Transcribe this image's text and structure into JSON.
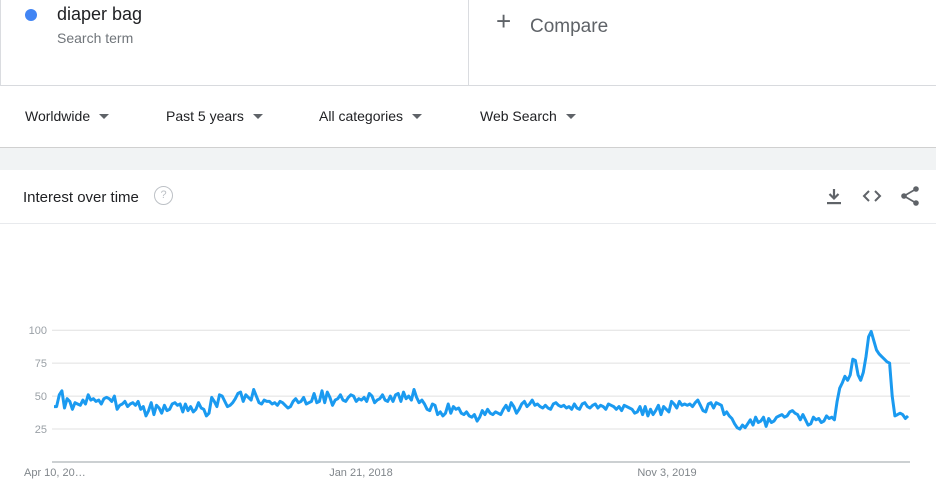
{
  "search_term": {
    "name": "diaper bag",
    "subtitle": "Search term",
    "color": "#4285f4"
  },
  "compare": {
    "label": "Compare"
  },
  "filters": [
    {
      "label": "Worldwide"
    },
    {
      "label": "Past 5 years"
    },
    {
      "label": "All categories"
    },
    {
      "label": "Web Search"
    }
  ],
  "panel": {
    "title": "Interest over time",
    "help_icon": "question-circle-icon",
    "tools": [
      "download-icon",
      "embed-code-icon",
      "share-icon"
    ]
  },
  "chart_data": {
    "type": "line",
    "x_tick_labels": [
      "Apr 10, 20…",
      "Jan 21, 2018",
      "Nov 3, 2019"
    ],
    "y_ticks": [
      25,
      50,
      75,
      100
    ],
    "ylim": [
      0,
      100
    ],
    "grid": true,
    "series": [
      {
        "color": "#1a9af0",
        "values": [
          42,
          42,
          51,
          54,
          41,
          48,
          46,
          40,
          45,
          44,
          43,
          47,
          44,
          51,
          47,
          48,
          46,
          47,
          44,
          48,
          49,
          48,
          46,
          50,
          40,
          43,
          44,
          46,
          42,
          44,
          45,
          43,
          46,
          40,
          42,
          35,
          39,
          45,
          36,
          43,
          41,
          37,
          43,
          39,
          40,
          44,
          45,
          43,
          44,
          38,
          44,
          39,
          42,
          38,
          40,
          45,
          41,
          40,
          35,
          37,
          49,
          46,
          42,
          51,
          50,
          46,
          42,
          43,
          45,
          48,
          52,
          53,
          46,
          51,
          49,
          47,
          55,
          50,
          45,
          44,
          47,
          46,
          46,
          44,
          45,
          43,
          46,
          45,
          43,
          41,
          42,
          46,
          48,
          45,
          46,
          49,
          44,
          45,
          46,
          52,
          45,
          46,
          54,
          45,
          53,
          49,
          43,
          47,
          48,
          51,
          47,
          46,
          49,
          51,
          50,
          46,
          48,
          47,
          49,
          46,
          52,
          50,
          45,
          47,
          48,
          51,
          47,
          46,
          50,
          46,
          51,
          52,
          46,
          53,
          48,
          50,
          47,
          55,
          49,
          45,
          47,
          44,
          40,
          39,
          44,
          43,
          36,
          38,
          35,
          37,
          44,
          37,
          42,
          40,
          41,
          37,
          36,
          38,
          35,
          34,
          36,
          31,
          34,
          39,
          36,
          40,
          37,
          36,
          38,
          37,
          36,
          40,
          43,
          39,
          45,
          42,
          37,
          40,
          44,
          46,
          42,
          44,
          47,
          43,
          44,
          42,
          41,
          43,
          41,
          40,
          44,
          45,
          43,
          42,
          43,
          41,
          42,
          40,
          44,
          41,
          40,
          44,
          45,
          42,
          41,
          43,
          44,
          41,
          43,
          42,
          40,
          44,
          43,
          42,
          40,
          42,
          39,
          43,
          42,
          41,
          40,
          37,
          38,
          42,
          36,
          42,
          35,
          40,
          36,
          39,
          43,
          36,
          42,
          40,
          38,
          46,
          44,
          41,
          46,
          43,
          44,
          43,
          44,
          42,
          45,
          47,
          43,
          39,
          38,
          44,
          45,
          41,
          45,
          44,
          43,
          36,
          38,
          35,
          33,
          29,
          26,
          25,
          28,
          26,
          29,
          32,
          28,
          34,
          30,
          31,
          34,
          27,
          33,
          30,
          31,
          34,
          35,
          36,
          34,
          35,
          38,
          39,
          37,
          36,
          32,
          36,
          32,
          28,
          29,
          34,
          32,
          33,
          30,
          31,
          35,
          33,
          34,
          32,
          46,
          56,
          60,
          65,
          62,
          66,
          78,
          77,
          66,
          62,
          68,
          80,
          95,
          99,
          92,
          85,
          82,
          80,
          78,
          76,
          75,
          50,
          35,
          36,
          37,
          36,
          33,
          35
        ]
      }
    ]
  }
}
